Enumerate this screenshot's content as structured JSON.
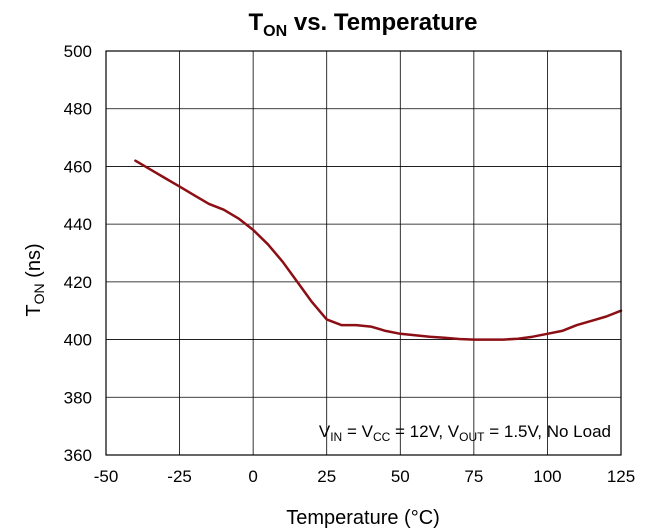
{
  "chart_data": {
    "type": "line",
    "title": {
      "text_main": "T",
      "text_sub": "ON",
      "text_rest": " vs. Temperature"
    },
    "xlabel": "Temperature (°C)",
    "ylabel": {
      "main": "T",
      "sub": "ON",
      "rest": " (ns)"
    },
    "xlim": [
      -50,
      125
    ],
    "ylim": [
      360,
      500
    ],
    "xticks": [
      -50,
      -25,
      0,
      25,
      50,
      75,
      100,
      125
    ],
    "yticks": [
      360,
      380,
      400,
      420,
      440,
      460,
      480,
      500
    ],
    "grid": true,
    "series": [
      {
        "color": "#8b0f14",
        "x": [
          -40,
          -35,
          -30,
          -25,
          -20,
          -15,
          -10,
          -5,
          0,
          5,
          10,
          15,
          20,
          25,
          30,
          35,
          40,
          45,
          50,
          55,
          60,
          65,
          70,
          75,
          80,
          85,
          90,
          95,
          100,
          105,
          110,
          115,
          120,
          125
        ],
        "y": [
          462,
          459,
          456,
          453,
          450,
          447,
          445,
          442,
          438,
          433,
          427,
          420,
          413,
          407,
          405,
          405,
          404.5,
          403,
          402,
          401.5,
          401,
          400.6,
          400.2,
          400,
          400,
          400,
          400.3,
          401,
          402,
          403,
          405,
          406.5,
          408,
          410
        ]
      }
    ],
    "annotation": [
      {
        "t": "V"
      },
      {
        "t": "IN",
        "sub": true
      },
      {
        "t": " = V"
      },
      {
        "t": "CC",
        "sub": true
      },
      {
        "t": " = 12V, V"
      },
      {
        "t": "OUT",
        "sub": true
      },
      {
        "t": " = 1.5V, No Load"
      }
    ]
  }
}
